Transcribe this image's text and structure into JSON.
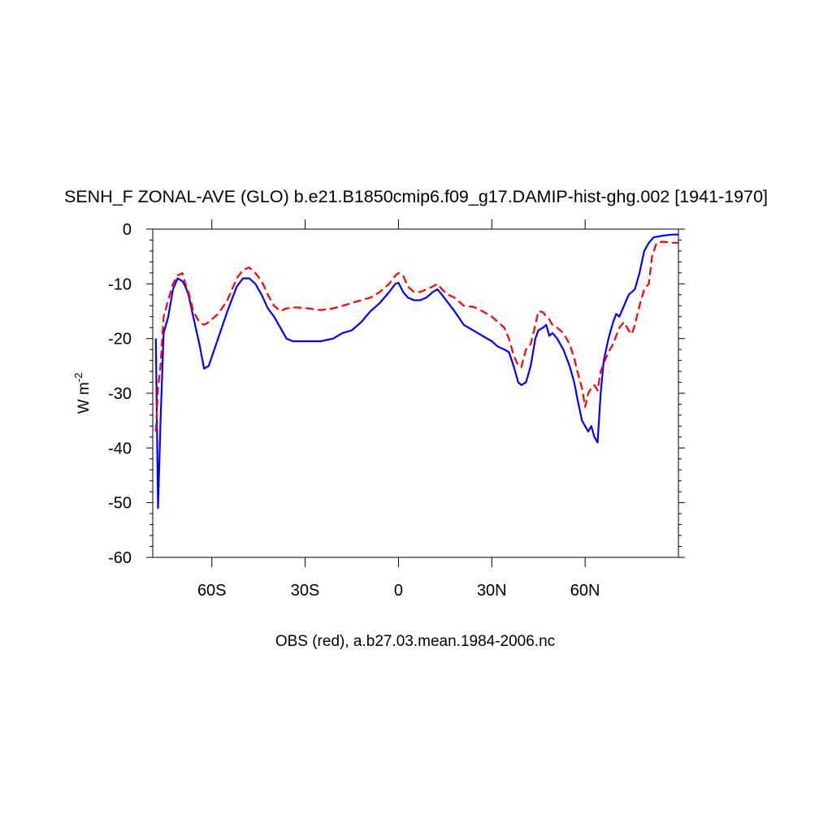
{
  "chart_data": {
    "type": "line",
    "title": "SENH_F ZONAL-AVE (GLO) b.e21.B1850cmip6.f09_g17.DAMIP-hist-ghg.002 [1941-1970]",
    "xlabel": "OBS (red), a.b27.03.mean.1984-2006.nc",
    "ylabel": "W m",
    "ylabel_superscript": "-2",
    "xlim": [
      -79,
      90
    ],
    "ylim": [
      -60,
      0
    ],
    "x_ticks": [
      -60,
      -30,
      0,
      30,
      60
    ],
    "x_tick_labels": [
      "60S",
      "30S",
      "0",
      "30N",
      "60N"
    ],
    "y_ticks": [
      0,
      -10,
      -20,
      -30,
      -40,
      -50,
      -60
    ],
    "y_tick_labels": [
      "0",
      "-10",
      "-20",
      "-30",
      "-40",
      "-50",
      "-60"
    ],
    "grid": false,
    "series": [
      {
        "color": "#0000ff",
        "dash": "solid",
        "points": [
          [
            -78,
            -20
          ],
          [
            -77.3,
            -51
          ],
          [
            -76.5,
            -35
          ],
          [
            -75.5,
            -19
          ],
          [
            -74,
            -16
          ],
          [
            -72.5,
            -11
          ],
          [
            -71,
            -9
          ],
          [
            -69.5,
            -9.5
          ],
          [
            -68.5,
            -10.5
          ],
          [
            -67.5,
            -12
          ],
          [
            -66,
            -16
          ],
          [
            -64,
            -21
          ],
          [
            -62.5,
            -25.5
          ],
          [
            -61,
            -25
          ],
          [
            -58,
            -20
          ],
          [
            -55,
            -15
          ],
          [
            -52,
            -10.5
          ],
          [
            -50,
            -9
          ],
          [
            -48,
            -9
          ],
          [
            -46,
            -10
          ],
          [
            -44,
            -12
          ],
          [
            -42,
            -14.5
          ],
          [
            -40,
            -16
          ],
          [
            -38,
            -18
          ],
          [
            -36,
            -20
          ],
          [
            -34,
            -20.5
          ],
          [
            -30,
            -20.5
          ],
          [
            -25,
            -20.5
          ],
          [
            -21,
            -20
          ],
          [
            -18,
            -19
          ],
          [
            -15,
            -18.5
          ],
          [
            -12,
            -17
          ],
          [
            -9,
            -15
          ],
          [
            -6,
            -13.5
          ],
          [
            -3,
            -11.5
          ],
          [
            -1,
            -10
          ],
          [
            0,
            -9.8
          ],
          [
            1.5,
            -11.5
          ],
          [
            3,
            -12.5
          ],
          [
            5,
            -13
          ],
          [
            7,
            -13
          ],
          [
            9,
            -12.5
          ],
          [
            11,
            -11.5
          ],
          [
            12.5,
            -11
          ],
          [
            14,
            -12
          ],
          [
            16,
            -13.5
          ],
          [
            18,
            -15
          ],
          [
            21,
            -17.5
          ],
          [
            24,
            -18.5
          ],
          [
            27,
            -19.5
          ],
          [
            30,
            -20.5
          ],
          [
            32,
            -21.5
          ],
          [
            34,
            -22
          ],
          [
            35.5,
            -22.5
          ],
          [
            37,
            -25
          ],
          [
            38.5,
            -28
          ],
          [
            39.5,
            -28.5
          ],
          [
            41,
            -28
          ],
          [
            42.5,
            -25
          ],
          [
            44,
            -20
          ],
          [
            45,
            -18.5
          ],
          [
            46.5,
            -18
          ],
          [
            47.5,
            -17.5
          ],
          [
            48.5,
            -19.5
          ],
          [
            49.5,
            -19
          ],
          [
            51,
            -20
          ],
          [
            53,
            -22
          ],
          [
            55,
            -25
          ],
          [
            56.5,
            -28
          ],
          [
            57.5,
            -31
          ],
          [
            59,
            -35
          ],
          [
            60,
            -36
          ],
          [
            61,
            -37
          ],
          [
            62,
            -36
          ],
          [
            63,
            -38
          ],
          [
            64,
            -39
          ],
          [
            65,
            -30
          ],
          [
            66,
            -24
          ],
          [
            67.5,
            -20
          ],
          [
            69,
            -17
          ],
          [
            70,
            -15.5
          ],
          [
            71,
            -16
          ],
          [
            72.5,
            -14
          ],
          [
            74,
            -12
          ],
          [
            76,
            -11
          ],
          [
            77.5,
            -8
          ],
          [
            79,
            -4
          ],
          [
            80.5,
            -2.5
          ],
          [
            82,
            -1.5
          ],
          [
            85,
            -1.2
          ],
          [
            88,
            -1
          ],
          [
            90,
            -1
          ]
        ]
      },
      {
        "color": "#ff0000",
        "dash": "dashed",
        "points": [
          [
            -78,
            -37
          ],
          [
            -77.3,
            -29
          ],
          [
            -76.5,
            -25
          ],
          [
            -75.5,
            -16
          ],
          [
            -74,
            -13
          ],
          [
            -72.5,
            -10
          ],
          [
            -71,
            -8.5
          ],
          [
            -69.5,
            -8
          ],
          [
            -68.5,
            -10
          ],
          [
            -67.5,
            -11.5
          ],
          [
            -66,
            -15
          ],
          [
            -64,
            -17
          ],
          [
            -62.5,
            -17.5
          ],
          [
            -61,
            -17
          ],
          [
            -58,
            -15.5
          ],
          [
            -55,
            -13
          ],
          [
            -52,
            -9
          ],
          [
            -50,
            -7.5
          ],
          [
            -48,
            -7
          ],
          [
            -46,
            -8
          ],
          [
            -44,
            -9.5
          ],
          [
            -42,
            -12
          ],
          [
            -40,
            -14
          ],
          [
            -38,
            -15
          ],
          [
            -36,
            -14.5
          ],
          [
            -33,
            -14.3
          ],
          [
            -29,
            -14.5
          ],
          [
            -25,
            -14.8
          ],
          [
            -21,
            -14.5
          ],
          [
            -18,
            -14
          ],
          [
            -15,
            -13.5
          ],
          [
            -12,
            -13
          ],
          [
            -9,
            -12.5
          ],
          [
            -6,
            -11.5
          ],
          [
            -3,
            -10
          ],
          [
            -1,
            -8.5
          ],
          [
            0,
            -8
          ],
          [
            1.5,
            -8.5
          ],
          [
            3,
            -10.5
          ],
          [
            5,
            -11.5
          ],
          [
            7,
            -11.5
          ],
          [
            9,
            -11
          ],
          [
            11,
            -10.5
          ],
          [
            12.5,
            -10
          ],
          [
            14,
            -11
          ],
          [
            16,
            -12
          ],
          [
            18,
            -12.5
          ],
          [
            21,
            -14
          ],
          [
            24,
            -14.2
          ],
          [
            27,
            -15
          ],
          [
            30,
            -16
          ],
          [
            32,
            -17
          ],
          [
            34,
            -18
          ],
          [
            35.5,
            -20
          ],
          [
            37,
            -23
          ],
          [
            38.5,
            -25
          ],
          [
            39.5,
            -25.2
          ],
          [
            41,
            -22
          ],
          [
            42.5,
            -21
          ],
          [
            44,
            -17.5
          ],
          [
            45,
            -15
          ],
          [
            46.5,
            -15.2
          ],
          [
            47.5,
            -16
          ],
          [
            48.5,
            -16.5
          ],
          [
            49.5,
            -17.5
          ],
          [
            51,
            -18
          ],
          [
            53,
            -19
          ],
          [
            55,
            -21
          ],
          [
            56.5,
            -23.5
          ],
          [
            57.5,
            -26
          ],
          [
            59,
            -29
          ],
          [
            60,
            -32.5
          ],
          [
            61,
            -30
          ],
          [
            62,
            -29
          ],
          [
            63,
            -28.5
          ],
          [
            64,
            -29.5
          ],
          [
            65,
            -26
          ],
          [
            66,
            -24.5
          ],
          [
            67.5,
            -22.5
          ],
          [
            69,
            -21
          ],
          [
            70,
            -19.5
          ],
          [
            71,
            -18
          ],
          [
            72.5,
            -17
          ],
          [
            74,
            -18.5
          ],
          [
            75,
            -19.2
          ],
          [
            76,
            -17.5
          ],
          [
            77.5,
            -14
          ],
          [
            79,
            -11
          ],
          [
            80.5,
            -10
          ],
          [
            81.5,
            -5
          ],
          [
            83,
            -2.5
          ],
          [
            85,
            -2.3
          ],
          [
            88,
            -2.5
          ],
          [
            90,
            -2.5
          ]
        ]
      }
    ]
  }
}
